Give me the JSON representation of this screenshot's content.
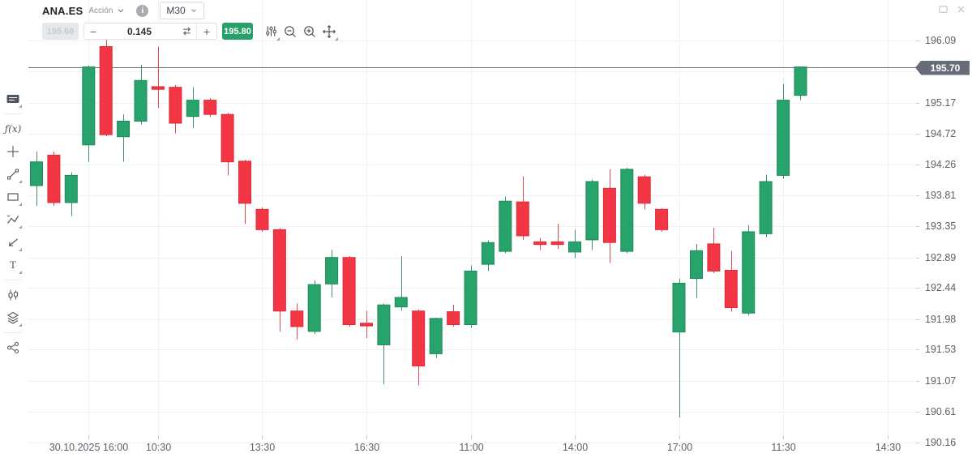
{
  "header": {
    "symbol": "ANA.ES",
    "instrument_type": "Acción",
    "timeframe_label": "M30",
    "trade_controls": {
      "sell_price": "195.66",
      "decrease_label": "−",
      "spread_value": "0.145",
      "increase_label": "+",
      "buy_price": "195.80"
    },
    "chart_tools": [
      "indicator-sliders",
      "zoom-out",
      "zoom-in",
      "pan"
    ],
    "window_controls": [
      "popup-window",
      "close"
    ]
  },
  "left_toolbar": {
    "fx_label": "ƒ(x)",
    "text_tool_label": "T",
    "items": [
      "chart-panel",
      "indicators-fx",
      "crosshair-plus",
      "trendline",
      "rectangle-shape",
      "elliott-wave",
      "arrow-annotation",
      "text-tool",
      "candle-compare",
      "layers",
      "share"
    ]
  },
  "chart_data": {
    "type": "candlestick",
    "symbol": "ANA.ES",
    "timeframe": "M30",
    "up_color": "#29a36c",
    "down_color": "#f23645",
    "grid": true,
    "last_price": 195.7,
    "last_price_label": "195.70",
    "y_axis": {
      "side": "right",
      "ticks": [
        {
          "price": 196.09,
          "label": "196.09"
        },
        {
          "price": 195.63,
          "label": ""
        },
        {
          "price": 195.17,
          "label": "195.17"
        },
        {
          "price": 194.72,
          "label": "194.72"
        },
        {
          "price": 194.26,
          "label": "194.26"
        },
        {
          "price": 193.81,
          "label": "193.81"
        },
        {
          "price": 193.35,
          "label": "193.35"
        },
        {
          "price": 192.89,
          "label": "192.89"
        },
        {
          "price": 192.44,
          "label": "192.44"
        },
        {
          "price": 191.98,
          "label": "191.98"
        },
        {
          "price": 191.53,
          "label": "191.53"
        },
        {
          "price": 191.07,
          "label": "191.07"
        },
        {
          "price": 190.61,
          "label": "190.61"
        },
        {
          "price": 190.16,
          "label": "190.16"
        }
      ]
    },
    "x_axis": {
      "ticks": [
        {
          "label": "30.10.2025 16:00",
          "candle_index": 3
        },
        {
          "label": "10:30",
          "candle_index": 7
        },
        {
          "label": "13:30",
          "candle_index": 13
        },
        {
          "label": "16:30",
          "candle_index": 19
        },
        {
          "label": "11:00",
          "candle_index": 25
        },
        {
          "label": "14:00",
          "candle_index": 31
        },
        {
          "label": "17:00",
          "candle_index": 37
        },
        {
          "label": "11:30",
          "candle_index": 43
        },
        {
          "label": "14:30",
          "candle_index": 49
        }
      ]
    },
    "ohlc_format": [
      "open",
      "high",
      "low",
      "close"
    ],
    "candles": [
      [
        193.95,
        194.45,
        193.65,
        194.3
      ],
      [
        194.4,
        194.45,
        193.65,
        193.7
      ],
      [
        193.7,
        194.15,
        193.5,
        194.1
      ],
      [
        194.55,
        195.72,
        194.3,
        195.7
      ],
      [
        196.0,
        196.1,
        194.68,
        194.7
      ],
      [
        194.67,
        195.0,
        194.3,
        194.9
      ],
      [
        194.9,
        195.73,
        194.85,
        195.5
      ],
      [
        195.41,
        196.0,
        195.1,
        195.37
      ],
      [
        195.4,
        195.43,
        194.72,
        194.87
      ],
      [
        194.97,
        195.4,
        194.8,
        195.21
      ],
      [
        195.21,
        195.24,
        194.96,
        195.0
      ],
      [
        195.0,
        195.02,
        194.1,
        194.3
      ],
      [
        194.31,
        194.33,
        193.39,
        193.69
      ],
      [
        193.6,
        193.63,
        193.27,
        193.3
      ],
      [
        193.3,
        193.32,
        191.8,
        192.1
      ],
      [
        192.1,
        192.21,
        191.68,
        191.87
      ],
      [
        191.8,
        192.55,
        191.76,
        192.49
      ],
      [
        192.5,
        193.0,
        192.3,
        192.89
      ],
      [
        192.89,
        192.91,
        191.87,
        191.9
      ],
      [
        191.92,
        192.1,
        191.7,
        191.88
      ],
      [
        191.6,
        192.21,
        191.02,
        192.19
      ],
      [
        192.16,
        192.91,
        192.1,
        192.3
      ],
      [
        192.1,
        192.12,
        191.0,
        191.29
      ],
      [
        191.47,
        192.0,
        191.41,
        191.99
      ],
      [
        192.09,
        192.19,
        191.87,
        191.9
      ],
      [
        191.9,
        192.77,
        191.85,
        192.69
      ],
      [
        192.79,
        193.14,
        192.69,
        193.11
      ],
      [
        192.98,
        193.79,
        192.95,
        193.72
      ],
      [
        193.71,
        194.09,
        193.15,
        193.21
      ],
      [
        193.12,
        193.18,
        193.0,
        193.08
      ],
      [
        193.12,
        193.39,
        193.02,
        193.08
      ],
      [
        192.97,
        193.3,
        192.88,
        193.12
      ],
      [
        193.15,
        194.04,
        193.0,
        194.01
      ],
      [
        193.91,
        194.19,
        192.81,
        193.11
      ],
      [
        192.98,
        194.21,
        192.95,
        194.19
      ],
      [
        194.08,
        194.11,
        193.6,
        193.69
      ],
      [
        193.6,
        193.62,
        193.27,
        193.3
      ],
      [
        191.79,
        192.58,
        190.53,
        192.51
      ],
      [
        192.58,
        193.09,
        192.29,
        192.99
      ],
      [
        193.09,
        193.33,
        192.66,
        192.69
      ],
      [
        192.7,
        192.99,
        192.09,
        192.15
      ],
      [
        192.07,
        193.37,
        192.03,
        193.27
      ],
      [
        193.24,
        194.11,
        193.19,
        194.01
      ],
      [
        194.1,
        195.45,
        194.05,
        195.21
      ],
      [
        195.28,
        195.7,
        195.21,
        195.7
      ]
    ]
  }
}
